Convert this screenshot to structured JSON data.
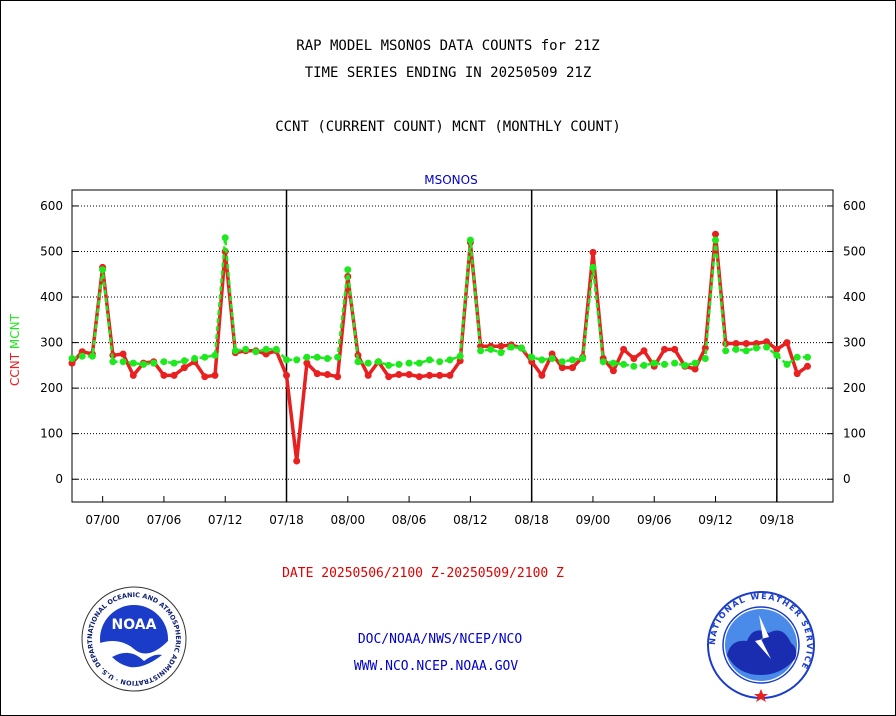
{
  "header": {
    "title_line1": "RAP MODEL MSONOS DATA COUNTS for 21Z",
    "title_line2": "TIME SERIES ENDING IN 20250509 21Z",
    "title_line3": "CCNT (CURRENT COUNT) MCNT (MONTHLY COUNT)"
  },
  "footer": {
    "date_range": "DATE 20250506/2100 Z-20250509/2100 Z",
    "org_path": "DOC/NOAA/NWS/NCEP/NCO",
    "url": "WWW.NCO.NCEP.NOAA.GOV"
  },
  "logos": {
    "noaa_wordmark": "NOAA",
    "noaa_ring_text": "NATIONAL OCEANIC AND ATMOSPHERIC ADMINISTRATION · U.S. DEPARTMENT OF COMMERCE",
    "nws_ring_text": "NATIONAL WEATHER SERVICE"
  },
  "colors": {
    "ccnt": "#e82020",
    "mcnt": "#1ee81e",
    "plot_title": "#0000cc"
  },
  "chart_data": {
    "type": "line",
    "title": "MSONOS",
    "ylabel_parts": [
      {
        "text": "CCNT",
        "color": "#e82020"
      },
      {
        "text": "MCNT",
        "color": "#1ee81e"
      }
    ],
    "ylim": [
      -50,
      635
    ],
    "yticks": [
      0,
      100,
      200,
      300,
      400,
      500,
      600
    ],
    "xlim": [
      0,
      74.5
    ],
    "xticks": [
      {
        "x": 3,
        "label": "07/00"
      },
      {
        "x": 9,
        "label": "07/06"
      },
      {
        "x": 15,
        "label": "07/12"
      },
      {
        "x": 21,
        "label": "07/18"
      },
      {
        "x": 27,
        "label": "08/00"
      },
      {
        "x": 33,
        "label": "08/06"
      },
      {
        "x": 39,
        "label": "08/12"
      },
      {
        "x": 45,
        "label": "08/18"
      },
      {
        "x": 51,
        "label": "09/00"
      },
      {
        "x": 57,
        "label": "09/06"
      },
      {
        "x": 63,
        "label": "09/12"
      },
      {
        "x": 69,
        "label": "09/18"
      }
    ],
    "day_boundaries": [
      21,
      45,
      69
    ],
    "grid": "horizontal-dotted",
    "x": [
      0,
      1,
      2,
      3,
      4,
      5,
      6,
      7,
      8,
      9,
      10,
      11,
      12,
      13,
      14,
      15,
      16,
      17,
      18,
      19,
      20,
      21,
      22,
      23,
      24,
      25,
      26,
      27,
      28,
      29,
      30,
      31,
      32,
      33,
      34,
      35,
      36,
      37,
      38,
      39,
      40,
      41,
      42,
      43,
      44,
      45,
      46,
      47,
      48,
      49,
      50,
      51,
      52,
      53,
      54,
      55,
      56,
      57,
      58,
      59,
      60,
      61,
      62,
      63,
      64,
      65,
      66,
      67,
      68,
      69,
      70,
      71,
      72
    ],
    "series": [
      {
        "name": "CCNT",
        "values": [
          255,
          280,
          275,
          465,
          272,
          275,
          228,
          255,
          258,
          228,
          228,
          245,
          258,
          225,
          228,
          500,
          278,
          282,
          282,
          275,
          282,
          228,
          40,
          255,
          232,
          230,
          225,
          445,
          272,
          228,
          258,
          225,
          230,
          230,
          225,
          228,
          228,
          228,
          260,
          520,
          292,
          292,
          292,
          295,
          288,
          258,
          228,
          275,
          245,
          245,
          268,
          498,
          265,
          238,
          285,
          265,
          282,
          248,
          285,
          285,
          248,
          242,
          288,
          538,
          298,
          298,
          298,
          298,
          302,
          285,
          300,
          232,
          248
        ]
      },
      {
        "name": "MCNT",
        "values": [
          265,
          270,
          270,
          460,
          258,
          258,
          255,
          252,
          255,
          258,
          255,
          260,
          265,
          268,
          272,
          530,
          282,
          285,
          280,
          285,
          285,
          262,
          262,
          268,
          268,
          265,
          268,
          460,
          258,
          255,
          258,
          250,
          252,
          255,
          255,
          262,
          258,
          262,
          270,
          525,
          282,
          285,
          278,
          290,
          288,
          268,
          262,
          265,
          258,
          262,
          265,
          465,
          258,
          255,
          252,
          248,
          250,
          255,
          252,
          255,
          250,
          255,
          265,
          525,
          282,
          285,
          282,
          288,
          290,
          272,
          252,
          268,
          268
        ]
      }
    ]
  }
}
